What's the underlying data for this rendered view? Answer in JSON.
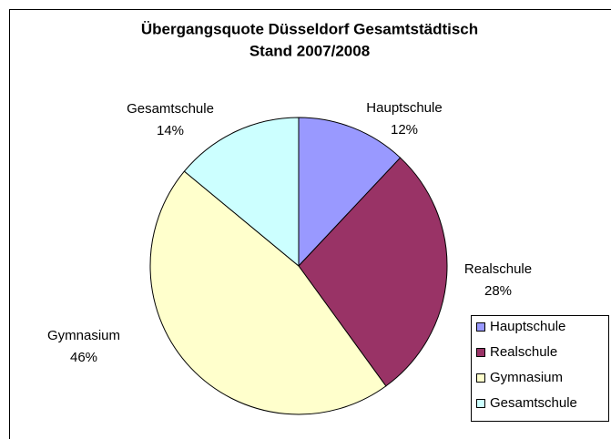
{
  "chart_data": {
    "type": "pie",
    "title": [
      "Übergangsquote Düsseldorf Gesamtstädtisch",
      "Stand 2007/2008"
    ],
    "categories": [
      "Hauptschule",
      "Realschule",
      "Gymnasium",
      "Gesamtschule"
    ],
    "values": [
      12,
      28,
      46,
      14
    ],
    "value_labels": [
      "12%",
      "28%",
      "46%",
      "14%"
    ],
    "colors": [
      "#9999ff",
      "#993366",
      "#ffffcc",
      "#ccffff"
    ],
    "legend": "right"
  }
}
